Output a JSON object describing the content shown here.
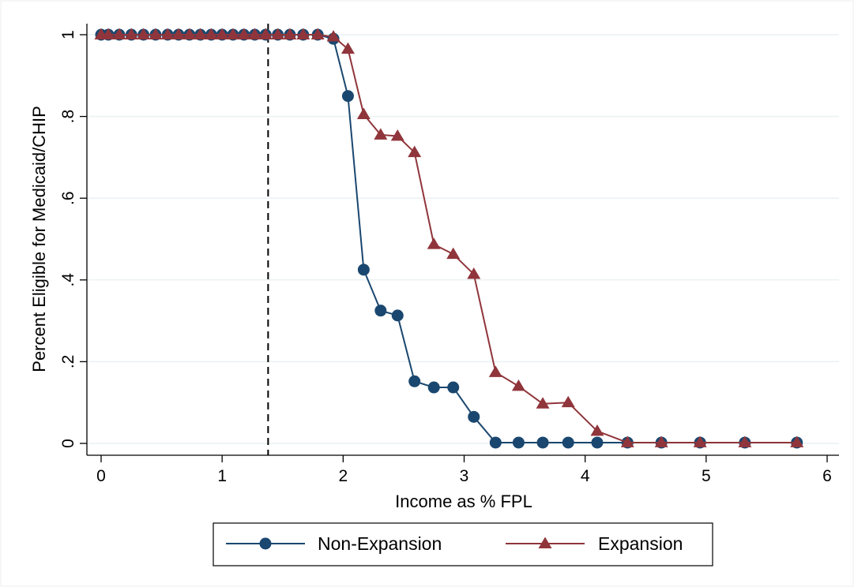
{
  "chart_data": {
    "type": "line",
    "xlabel": "Income as % FPL",
    "ylabel": "Percent Eligible for Medicaid/CHIP",
    "xlim": [
      0,
      6
    ],
    "ylim": [
      0,
      1
    ],
    "x_ticks": [
      {
        "value": 0,
        "label": "0"
      },
      {
        "value": 1,
        "label": "1"
      },
      {
        "value": 2,
        "label": "2"
      },
      {
        "value": 3,
        "label": "3"
      },
      {
        "value": 4,
        "label": "4"
      },
      {
        "value": 5,
        "label": "5"
      },
      {
        "value": 6,
        "label": "6"
      }
    ],
    "y_ticks": [
      {
        "value": 0,
        "label": "0"
      },
      {
        "value": 0.2,
        "label": ".2"
      },
      {
        "value": 0.4,
        "label": ".4"
      },
      {
        "value": 0.6,
        "label": ".6"
      },
      {
        "value": 0.8,
        "label": ".8"
      },
      {
        "value": 1,
        "label": "1"
      }
    ],
    "grid": "horizontal",
    "reference_line": {
      "x": 1.38,
      "style": "dashed",
      "color": "#000000"
    },
    "legend_position": "bottom",
    "series": [
      {
        "name": "Non-Expansion",
        "color": "#1a476f",
        "marker": "circle",
        "points": [
          [
            0.0,
            1
          ],
          [
            0.06,
            1
          ],
          [
            0.15,
            1
          ],
          [
            0.25,
            1
          ],
          [
            0.35,
            1
          ],
          [
            0.45,
            1
          ],
          [
            0.55,
            1
          ],
          [
            0.64,
            1
          ],
          [
            0.73,
            1
          ],
          [
            0.82,
            1
          ],
          [
            0.91,
            1
          ],
          [
            1.0,
            1
          ],
          [
            1.09,
            1
          ],
          [
            1.18,
            1
          ],
          [
            1.27,
            1
          ],
          [
            1.36,
            1
          ],
          [
            1.46,
            1
          ],
          [
            1.56,
            1
          ],
          [
            1.67,
            1
          ],
          [
            1.79,
            1
          ],
          [
            1.92,
            0.99
          ],
          [
            2.04,
            0.85
          ],
          [
            2.17,
            0.425
          ],
          [
            2.31,
            0.325
          ],
          [
            2.45,
            0.313
          ],
          [
            2.59,
            0.152
          ],
          [
            2.75,
            0.137
          ],
          [
            2.91,
            0.137
          ],
          [
            3.08,
            0.065
          ],
          [
            3.26,
            0.002
          ],
          [
            3.45,
            0.002
          ],
          [
            3.65,
            0.002
          ],
          [
            3.86,
            0.002
          ],
          [
            4.1,
            0.002
          ],
          [
            4.35,
            0.002
          ],
          [
            4.63,
            0.002
          ],
          [
            4.95,
            0.002
          ],
          [
            5.32,
            0.002
          ],
          [
            5.75,
            0.002
          ]
        ]
      },
      {
        "name": "Expansion",
        "color": "#90353b",
        "marker": "triangle",
        "points": [
          [
            0.0,
            1
          ],
          [
            0.06,
            1
          ],
          [
            0.15,
            1
          ],
          [
            0.25,
            1
          ],
          [
            0.35,
            1
          ],
          [
            0.45,
            1
          ],
          [
            0.55,
            1
          ],
          [
            0.64,
            1
          ],
          [
            0.73,
            1
          ],
          [
            0.82,
            1
          ],
          [
            0.91,
            1
          ],
          [
            1.0,
            1
          ],
          [
            1.09,
            1
          ],
          [
            1.18,
            1
          ],
          [
            1.27,
            1
          ],
          [
            1.36,
            1
          ],
          [
            1.46,
            1
          ],
          [
            1.56,
            1
          ],
          [
            1.67,
            1
          ],
          [
            1.79,
            1
          ],
          [
            1.92,
            0.995
          ],
          [
            2.04,
            0.965
          ],
          [
            2.17,
            0.805
          ],
          [
            2.31,
            0.755
          ],
          [
            2.45,
            0.752
          ],
          [
            2.59,
            0.712
          ],
          [
            2.75,
            0.487
          ],
          [
            2.91,
            0.463
          ],
          [
            3.08,
            0.414
          ],
          [
            3.26,
            0.174
          ],
          [
            3.45,
            0.14
          ],
          [
            3.65,
            0.097
          ],
          [
            3.86,
            0.1
          ],
          [
            4.1,
            0.03
          ],
          [
            4.35,
            0.002
          ],
          [
            4.63,
            0.002
          ],
          [
            4.95,
            0.002
          ],
          [
            5.32,
            0.002
          ],
          [
            5.75,
            0.002
          ]
        ]
      }
    ]
  }
}
